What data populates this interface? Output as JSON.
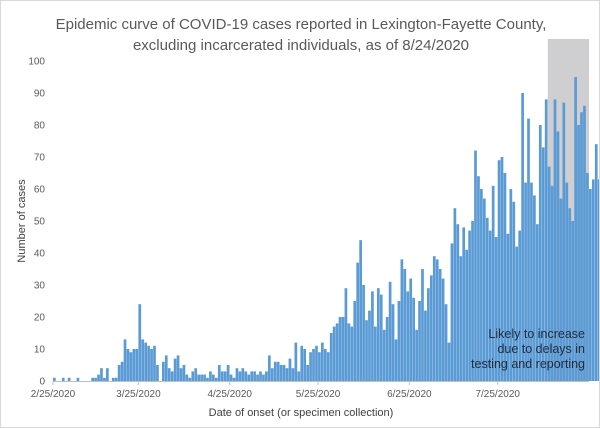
{
  "chart_data": {
    "type": "bar",
    "title_line1": "Epidemic curve of COVID-19 cases reported in Lexington-Fayette County,",
    "title_line2": "excluding incarcerated individuals, as of 8/24/2020",
    "xlabel": "Date of onset (or specimen collection)",
    "ylabel": "Number of cases",
    "ylim": [
      0,
      100
    ],
    "yticks": [
      0,
      10,
      20,
      30,
      40,
      50,
      60,
      70,
      80,
      90,
      100
    ],
    "start_date": "2020-02-25",
    "end_date": "2020-08-24",
    "x_tick_labels": [
      {
        "label": "2/25/2020",
        "date": "2020-02-25"
      },
      {
        "label": "3/25/2020",
        "date": "2020-03-25"
      },
      {
        "label": "4/25/2020",
        "date": "2020-04-25"
      },
      {
        "label": "5/25/2020",
        "date": "2020-05-25"
      },
      {
        "label": "6/25/2020",
        "date": "2020-06-25"
      },
      {
        "label": "7/25/2020",
        "date": "2020-07-25"
      }
    ],
    "grid": false,
    "bar_color": "#5b9bd5",
    "shade_color": "#cfcfd2",
    "shaded_region": {
      "start": "2020-08-11",
      "end": "2020-08-24"
    },
    "annotation": [
      "Likely to increase",
      "due to delays in",
      "testing and reporting"
    ],
    "values": [
      1,
      0,
      0,
      1,
      0,
      1,
      0,
      0,
      1,
      0,
      0,
      0,
      0,
      1,
      1,
      2,
      4,
      1,
      4,
      0,
      1,
      1,
      5,
      6,
      13,
      10,
      9,
      10,
      10,
      24,
      13,
      12,
      11,
      10,
      11,
      5,
      0,
      6,
      8,
      4,
      3,
      7,
      8,
      4,
      5,
      2,
      1,
      3,
      4,
      2,
      2,
      2,
      1,
      3,
      2,
      1,
      5,
      3,
      3,
      5,
      2,
      1,
      4,
      3,
      4,
      3,
      2,
      3,
      3,
      2,
      3,
      2,
      3,
      8,
      4,
      6,
      6,
      5,
      5,
      4,
      7,
      4,
      12,
      3,
      11,
      10,
      5,
      9,
      10,
      11,
      9,
      12,
      10,
      9,
      15,
      17,
      18,
      20,
      20,
      29,
      18,
      17,
      25,
      37,
      44,
      30,
      19,
      22,
      28,
      17,
      29,
      27,
      16,
      20,
      31,
      24,
      13,
      25,
      38,
      35,
      28,
      32,
      26,
      16,
      25,
      35,
      22,
      29,
      33,
      39,
      38,
      35,
      32,
      24,
      12,
      43,
      54,
      49,
      39,
      48,
      41,
      47,
      50,
      72,
      64,
      60,
      57,
      51,
      47,
      61,
      45,
      69,
      70,
      65,
      46,
      60,
      56,
      42,
      47,
      90,
      62,
      82,
      62,
      58,
      49,
      80,
      73,
      88,
      67,
      61,
      88,
      78,
      57,
      87,
      62,
      54,
      50,
      95,
      80,
      84,
      86,
      65,
      60,
      63,
      74,
      63,
      58,
      62,
      36
    ]
  }
}
